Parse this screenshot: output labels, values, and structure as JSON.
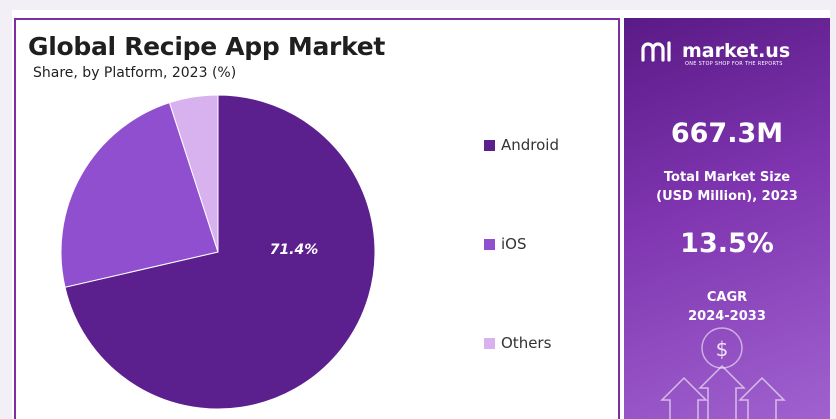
{
  "chart_data": {
    "type": "pie",
    "title": "Global Recipe App Market",
    "subtitle": "Share, by Platform, 2023 (%)",
    "slices": [
      {
        "label": "Android",
        "value": 71.4,
        "color": "#5c1f8e",
        "data_label": "71.4%"
      },
      {
        "label": "iOS",
        "value": 23.6,
        "color": "#8f4fce",
        "data_label": ""
      },
      {
        "label": "Others",
        "value": 5.0,
        "color": "#d8b2ef",
        "data_label": ""
      }
    ],
    "legend_position": "right"
  },
  "brand": {
    "name": "market.us",
    "tagline": "ONE STOP SHOP FOR THE REPORTS"
  },
  "stats": {
    "market_size_value": "667.3M",
    "market_size_label_line1": "Total Market Size",
    "market_size_label_line2": "(USD Million), 2023",
    "cagr_value": "13.5%",
    "cagr_label_line1": "CAGR",
    "cagr_label_line2": "2024-2033"
  },
  "decor": {
    "dollar_glyph": "$"
  },
  "colors": {
    "panel_border": "#7e2fa6",
    "panel_gradient_start": "#5a1a86",
    "panel_gradient_end": "#a062cf"
  }
}
